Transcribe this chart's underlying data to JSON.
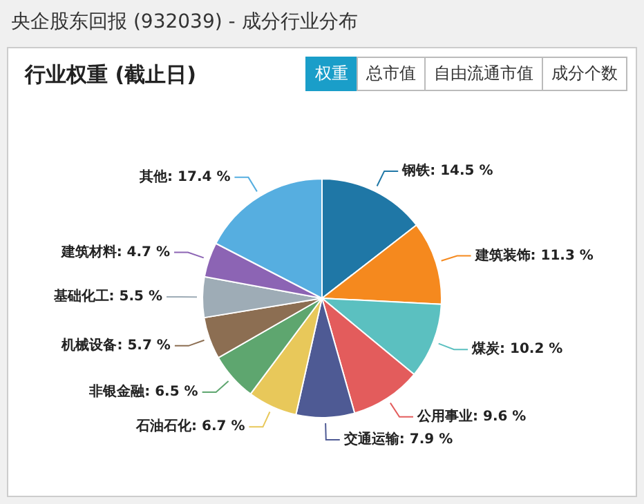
{
  "chart_data": {
    "type": "pie",
    "title": "央企股东回报 (932039) - 成分行业分布",
    "subtitle": "行业权重 (截止日)",
    "annotations": [
      "权重",
      "总市值",
      "自由流通市值",
      "成分个数"
    ],
    "categories": [
      "钢铁",
      "建筑装饰",
      "煤炭",
      "公用事业",
      "交通运输",
      "石油石化",
      "非银金融",
      "机械设备",
      "基础化工",
      "建筑材料",
      "其他"
    ],
    "values": [
      14.5,
      11.3,
      10.2,
      9.6,
      7.9,
      6.7,
      6.5,
      5.7,
      5.5,
      4.7,
      17.4
    ],
    "value_labels": [
      "14.5 %",
      "11.3 %",
      "10.2 %",
      "9.6 %",
      "7.9 %",
      "6.7 %",
      "6.5 %",
      "5.7 %",
      "5.5 %",
      "4.7 %",
      "17.4 %"
    ],
    "colors": [
      "#1f77a6",
      "#f5891e",
      "#5bc0c0",
      "#e35c5c",
      "#4e5a94",
      "#e8c85a",
      "#5ea66f",
      "#8c6e52",
      "#9eacb6",
      "#8c64b4",
      "#56aee0"
    ],
    "legend": false
  }
}
